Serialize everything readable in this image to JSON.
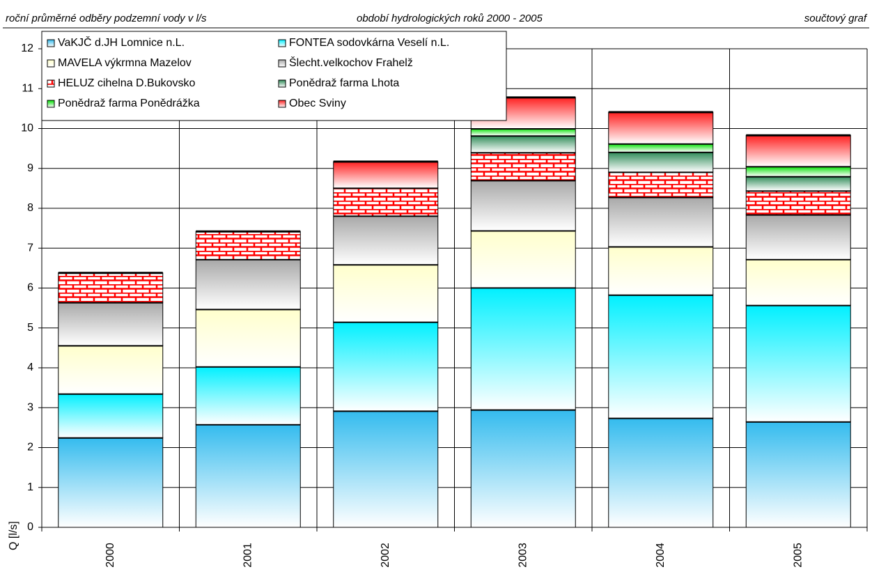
{
  "chart_data": {
    "type": "stacked_bar",
    "title": "roční průměrné odběry podzemní vody v l/s",
    "subtitle": "období hydrologických roků 2000 - 2005",
    "annotation": "součtový graf",
    "ylabel": "Q [l/s]",
    "categories": [
      "2000",
      "2001",
      "2002",
      "2003",
      "2004",
      "2005"
    ],
    "ylim": [
      0,
      12
    ],
    "yticks": [
      0,
      1,
      2,
      3,
      4,
      5,
      6,
      7,
      8,
      9,
      10,
      11,
      12
    ],
    "grid": true,
    "legend": "top-left",
    "series": [
      {
        "name": "VaKJČ d.JH Lomnice n.L.",
        "color": "#33bbee",
        "values": [
          2.25,
          2.58,
          2.92,
          2.95,
          2.74,
          2.65
        ]
      },
      {
        "name": "FONTEA sodovkárna Veselí n.L.",
        "color": "#00f0ff",
        "values": [
          1.1,
          1.45,
          2.23,
          3.06,
          3.09,
          2.92
        ]
      },
      {
        "name": "MAVELA výkrmna Mazelov",
        "color": "#ffffcc",
        "values": [
          1.21,
          1.44,
          1.44,
          1.43,
          1.21,
          1.15
        ]
      },
      {
        "name": "Šlecht.velkochov Frahelž",
        "color": "#a8a8a8",
        "values": [
          1.08,
          1.25,
          1.22,
          1.26,
          1.24,
          1.12
        ]
      },
      {
        "name": "HELUZ cihelna D.Bukovsko",
        "color": "#ff0000",
        "pattern": "brick",
        "values": [
          0.74,
          0.7,
          0.7,
          0.7,
          0.63,
          0.6
        ]
      },
      {
        "name": "Ponědraž farma Lhota",
        "color": "#2e8b57",
        "values": [
          0,
          0,
          0,
          0.42,
          0.5,
          0.36
        ]
      },
      {
        "name": "Ponědraž farma Ponědrážka",
        "color": "#00e000",
        "values": [
          0,
          0,
          0,
          0.18,
          0.21,
          0.25
        ]
      },
      {
        "name": "Obec Sviny",
        "color": "#ff2020",
        "values": [
          0,
          0,
          0.66,
          0.78,
          0.79,
          0.78
        ]
      }
    ]
  }
}
